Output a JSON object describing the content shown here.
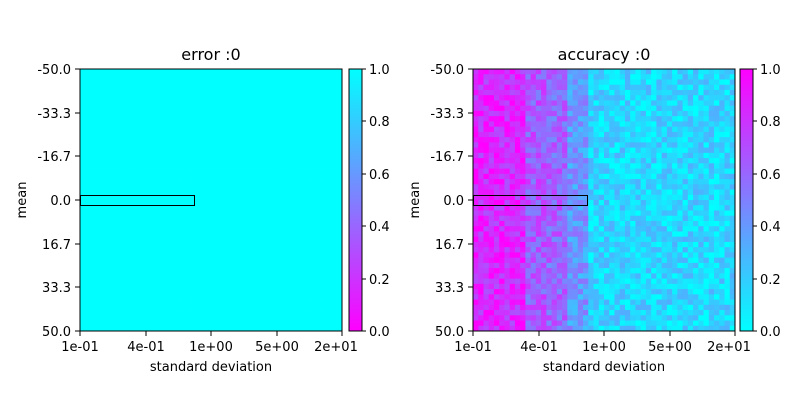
{
  "chart_data": [
    {
      "type": "heatmap",
      "title": "error :0",
      "xlabel": "standard deviation",
      "ylabel": "mean",
      "x_scale": "log",
      "x_range": [
        0.1,
        20
      ],
      "x_tick_labels": [
        "1e-01",
        "4e-01",
        "1e+00",
        "5e+00",
        "2e+01"
      ],
      "y_range": [
        -50.0,
        50.0
      ],
      "y_tick_labels": [
        "-50.0",
        "-33.3",
        "-16.7",
        "0.0",
        "16.7",
        "33.3",
        "50.0"
      ],
      "grid_cells": [
        50,
        50
      ],
      "colormap": "cool",
      "colorbar_direction": "low-bottom",
      "colorbar_range": [
        0.0,
        1.0
      ],
      "colorbar_tick_labels": [
        "0.0",
        "0.2",
        "0.4",
        "0.6",
        "0.8",
        "1.0"
      ],
      "value_all_cells": 1.0,
      "highlight_rectangle": {
        "x_range": [
          0.1,
          0.82
        ],
        "y_range": [
          -1.5,
          1.5
        ]
      }
    },
    {
      "type": "heatmap",
      "title": "accuracy :0",
      "xlabel": "standard deviation",
      "ylabel": "mean",
      "x_scale": "log",
      "x_range": [
        0.1,
        20
      ],
      "x_tick_labels": [
        "1e-01",
        "4e-01",
        "1e+00",
        "5e+00",
        "2e+01"
      ],
      "y_range": [
        -50.0,
        50.0
      ],
      "y_tick_labels": [
        "-50.0",
        "-33.3",
        "-16.7",
        "0.0",
        "16.7",
        "33.3",
        "50.0"
      ],
      "grid_cells": [
        50,
        50
      ],
      "colormap": "cool",
      "colorbar_direction": "high-top",
      "colorbar_range": [
        0.0,
        1.0
      ],
      "colorbar_tick_labels": [
        "0.0",
        "0.2",
        "0.4",
        "0.6",
        "0.8",
        "1.0"
      ],
      "column_profile_by_std": [
        {
          "std_max": 0.3,
          "approx_value": 0.85
        },
        {
          "std_max": 0.45,
          "approx_value": 0.65
        },
        {
          "std_max": 0.7,
          "approx_value": 0.6
        },
        {
          "std_max": 1.0,
          "approx_value": 0.4
        },
        {
          "std_max": 20,
          "approx_value": 0.15
        }
      ],
      "highlight_rectangle": {
        "x_range": [
          0.1,
          0.82
        ],
        "y_range": [
          -1.5,
          1.5
        ]
      }
    }
  ],
  "colors": {
    "cmap_low": "#00ffff",
    "cmap_high": "#ff00ff",
    "frame": "#000000",
    "highlight": "#000000"
  }
}
